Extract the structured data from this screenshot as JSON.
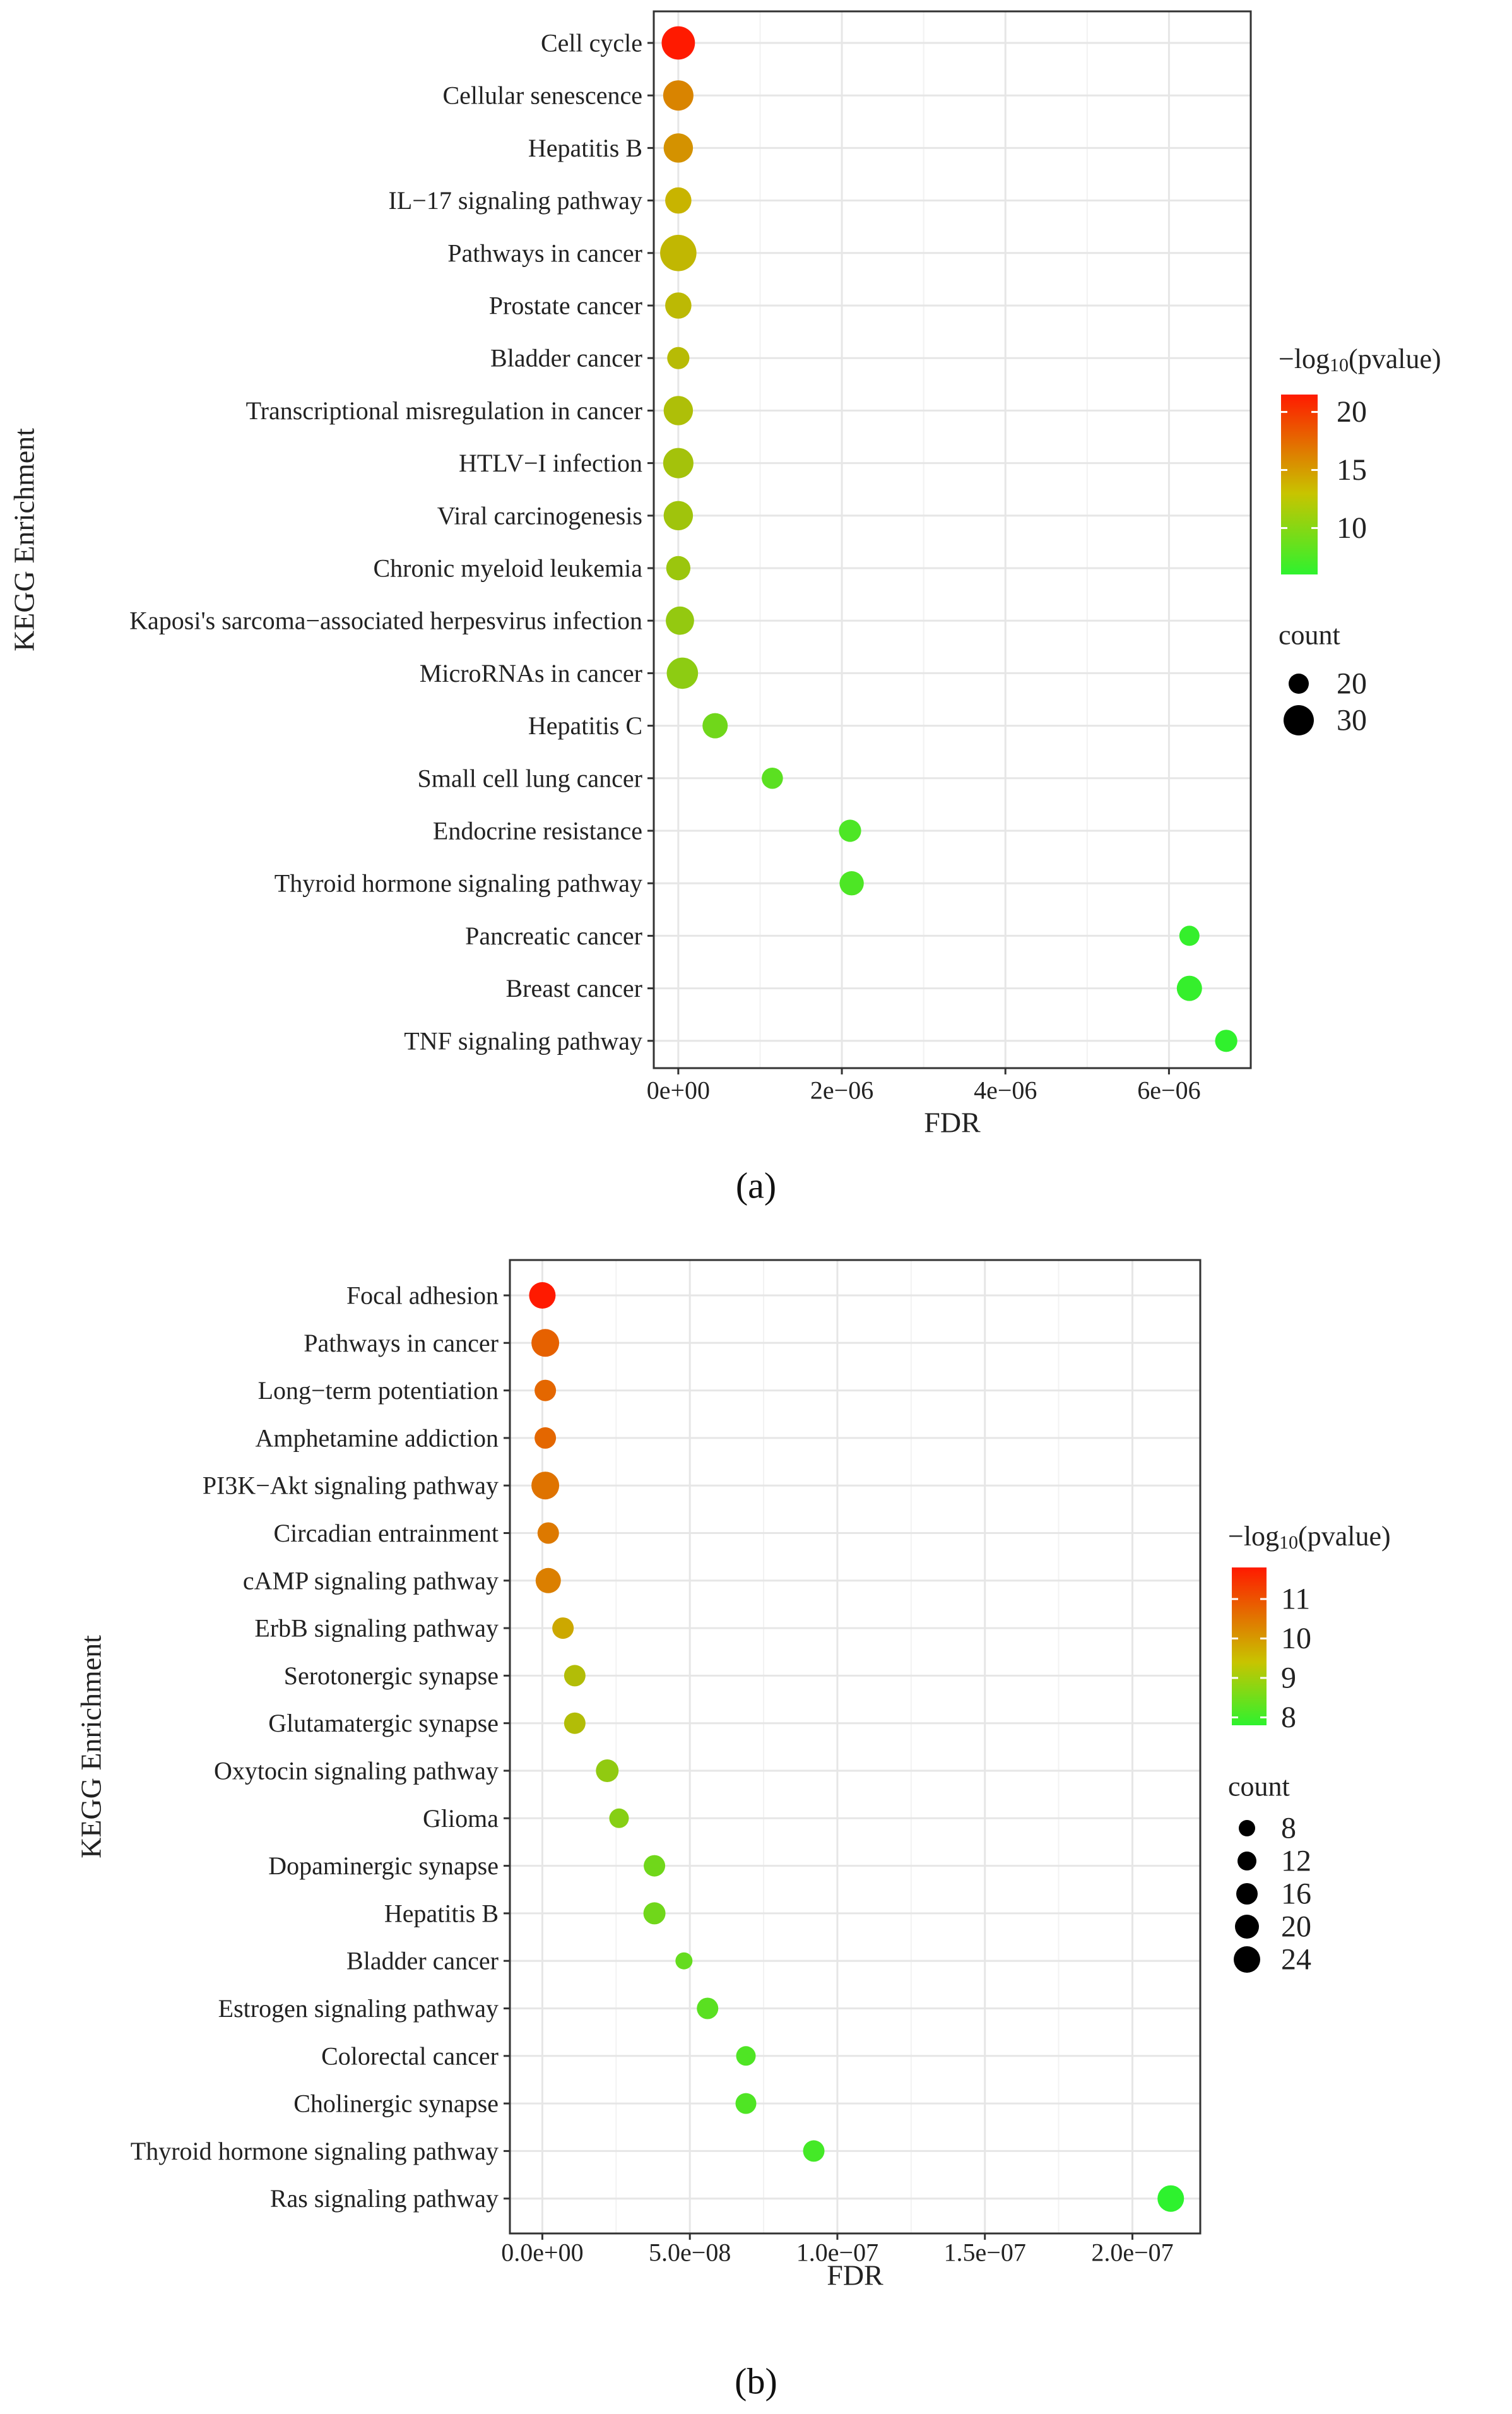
{
  "chart_data": [
    {
      "type": "scatter",
      "panel_label": "(a)",
      "xlabel": "FDR",
      "ylabel": "KEGG Enrichment",
      "x_ticks": [
        "0e+00",
        "2e−06",
        "4e−06",
        "6e−06"
      ],
      "x_tick_values": [
        0,
        2e-06,
        4e-06,
        6e-06
      ],
      "xlim": [
        -3e-07,
        7e-06
      ],
      "color_legend": {
        "title_prefix": "−log",
        "title_sub": "10",
        "title_suffix": "(pvalue)",
        "min": 6,
        "max": 21.5,
        "ticks": [
          "10",
          "15",
          "20"
        ],
        "tick_values": [
          10,
          15,
          20
        ]
      },
      "size_legend": {
        "title": "count",
        "labels": [
          "20",
          "30"
        ],
        "values": [
          20,
          30
        ]
      },
      "points": [
        {
          "label": "Cell cycle",
          "fdr": 0,
          "neglog10p": 21.5,
          "count": 33
        },
        {
          "label": "Cellular senescence",
          "fdr": 0,
          "neglog10p": 15.3,
          "count": 30
        },
        {
          "label": "Hepatitis B",
          "fdr": 0,
          "neglog10p": 14.5,
          "count": 29
        },
        {
          "label": "IL−17 signaling pathway",
          "fdr": 0,
          "neglog10p": 12.5,
          "count": 26
        },
        {
          "label": "Pathways in cancer",
          "fdr": 0,
          "neglog10p": 12.2,
          "count": 36
        },
        {
          "label": "Prostate cancer",
          "fdr": 0,
          "neglog10p": 12.0,
          "count": 26
        },
        {
          "label": "Bladder cancer",
          "fdr": 0,
          "neglog10p": 11.8,
          "count": 22
        },
        {
          "label": "Transcriptional misregulation in cancer",
          "fdr": 0,
          "neglog10p": 11.4,
          "count": 29
        },
        {
          "label": "HTLV−I infection",
          "fdr": 0,
          "neglog10p": 11.0,
          "count": 30
        },
        {
          "label": "Viral carcinogenesis",
          "fdr": 0,
          "neglog10p": 10.8,
          "count": 29
        },
        {
          "label": "Chronic myeloid leukemia",
          "fdr": 0,
          "neglog10p": 10.6,
          "count": 24
        },
        {
          "label": "Kaposi's sarcoma−associated herpesvirus infection",
          "fdr": 2e-08,
          "neglog10p": 10.3,
          "count": 28
        },
        {
          "label": "MicroRNAs in cancer",
          "fdr": 5e-08,
          "neglog10p": 10.0,
          "count": 31
        },
        {
          "label": "Hepatitis C",
          "fdr": 4.5e-07,
          "neglog10p": 8.8,
          "count": 25
        },
        {
          "label": "Small cell lung cancer",
          "fdr": 1.15e-06,
          "neglog10p": 7.9,
          "count": 21
        },
        {
          "label": "Endocrine resistance",
          "fdr": 2.1e-06,
          "neglog10p": 7.3,
          "count": 22
        },
        {
          "label": "Thyroid hormone signaling pathway",
          "fdr": 2.12e-06,
          "neglog10p": 7.3,
          "count": 24
        },
        {
          "label": "Pancreatic cancer",
          "fdr": 6.25e-06,
          "neglog10p": 6.3,
          "count": 19
        },
        {
          "label": "Breast cancer",
          "fdr": 6.25e-06,
          "neglog10p": 6.3,
          "count": 25
        },
        {
          "label": "TNF signaling pathway",
          "fdr": 6.7e-06,
          "neglog10p": 6.1,
          "count": 22
        }
      ]
    },
    {
      "type": "scatter",
      "panel_label": "(b)",
      "xlabel": "FDR",
      "ylabel": "KEGG Enrichment",
      "x_ticks": [
        "0.0e+00",
        "5.0e−08",
        "1.0e−07",
        "1.5e−07",
        "2.0e−07"
      ],
      "x_tick_values": [
        0,
        5e-08,
        1e-07,
        1.5e-07,
        2e-07
      ],
      "xlim": [
        -1.1e-08,
        2.23e-07
      ],
      "color_legend": {
        "title_prefix": "−log",
        "title_sub": "10",
        "title_suffix": "(pvalue)",
        "min": 7.8,
        "max": 11.8,
        "ticks": [
          "8",
          "9",
          "10",
          "11"
        ],
        "tick_values": [
          8,
          9,
          10,
          11
        ]
      },
      "size_legend": {
        "title": "count",
        "labels": [
          "8",
          "12",
          "16",
          "20",
          "24"
        ],
        "values": [
          8,
          12,
          16,
          20,
          24
        ]
      },
      "points": [
        {
          "label": "Focal adhesion",
          "fdr": 0,
          "neglog10p": 11.8,
          "count": 24
        },
        {
          "label": "Pathways in cancer",
          "fdr": 1e-09,
          "neglog10p": 10.6,
          "count": 26
        },
        {
          "label": "Long−term potentiation",
          "fdr": 1e-09,
          "neglog10p": 10.5,
          "count": 16
        },
        {
          "label": "Amphetamine addiction",
          "fdr": 1e-09,
          "neglog10p": 10.5,
          "count": 16
        },
        {
          "label": "PI3K−Akt signaling pathway",
          "fdr": 1e-09,
          "neglog10p": 10.3,
          "count": 26
        },
        {
          "label": "Circadian entrainment",
          "fdr": 2e-09,
          "neglog10p": 10.2,
          "count": 16
        },
        {
          "label": "cAMP signaling pathway",
          "fdr": 2e-09,
          "neglog10p": 10.1,
          "count": 22
        },
        {
          "label": "ErbB signaling pathway",
          "fdr": 7e-09,
          "neglog10p": 9.4,
          "count": 16
        },
        {
          "label": "Serotonergic synapse",
          "fdr": 1.1e-08,
          "neglog10p": 9.0,
          "count": 16
        },
        {
          "label": "Glutamatergic synapse",
          "fdr": 1.1e-08,
          "neglog10p": 9.0,
          "count": 16
        },
        {
          "label": "Oxytocin signaling pathway",
          "fdr": 2.2e-08,
          "neglog10p": 8.7,
          "count": 18
        },
        {
          "label": "Glioma",
          "fdr": 2.6e-08,
          "neglog10p": 8.6,
          "count": 13
        },
        {
          "label": "Dopaminergic synapse",
          "fdr": 3.8e-08,
          "neglog10p": 8.4,
          "count": 16
        },
        {
          "label": "Hepatitis B",
          "fdr": 3.8e-08,
          "neglog10p": 8.4,
          "count": 17
        },
        {
          "label": "Bladder cancer",
          "fdr": 4.8e-08,
          "neglog10p": 8.3,
          "count": 9
        },
        {
          "label": "Estrogen signaling pathway",
          "fdr": 5.6e-08,
          "neglog10p": 8.2,
          "count": 16
        },
        {
          "label": "Colorectal cancer",
          "fdr": 6.9e-08,
          "neglog10p": 8.1,
          "count": 13
        },
        {
          "label": "Cholinergic synapse",
          "fdr": 6.9e-08,
          "neglog10p": 8.1,
          "count": 15
        },
        {
          "label": "Thyroid hormone signaling pathway",
          "fdr": 9.2e-08,
          "neglog10p": 8.0,
          "count": 16
        },
        {
          "label": "Ras signaling pathway",
          "fdr": 2.13e-07,
          "neglog10p": 7.8,
          "count": 24
        }
      ]
    }
  ],
  "colors": {
    "high": "#ff1a00",
    "mid": "#c8b400",
    "low": "#2ef22e",
    "grid": "#e6e6e6",
    "border": "#333333"
  }
}
